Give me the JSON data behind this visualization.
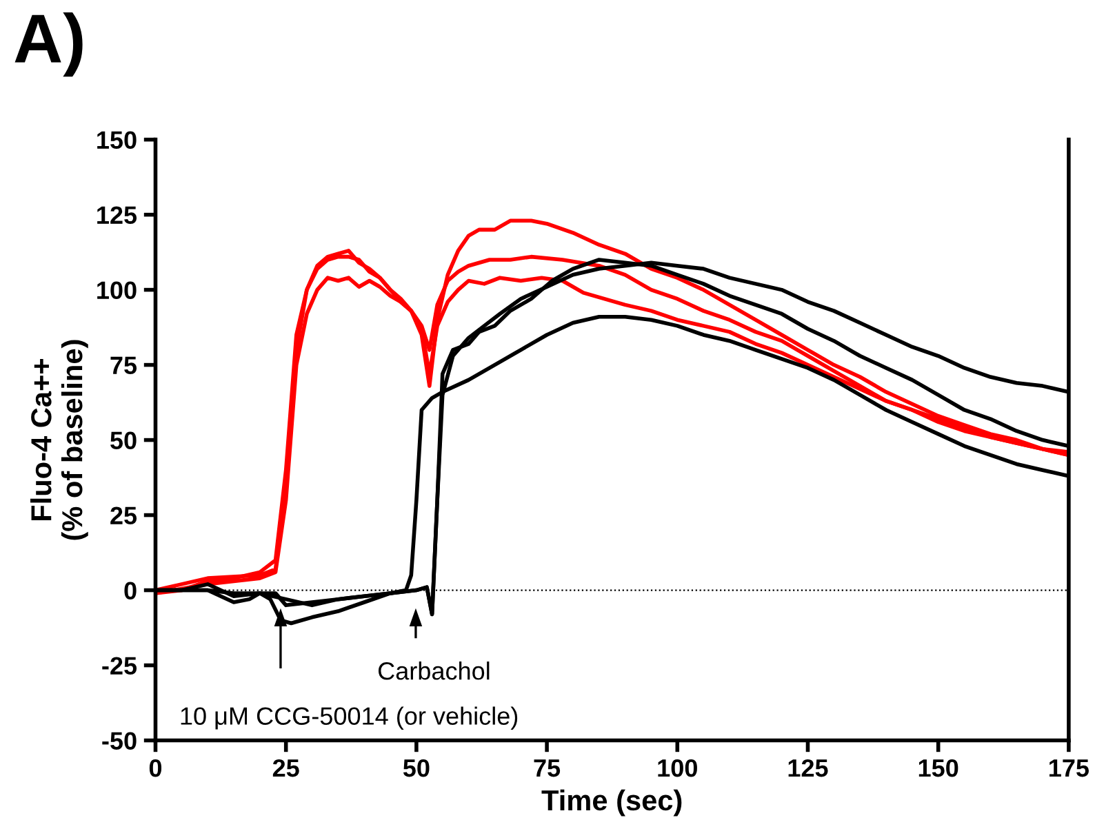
{
  "chart_data": {
    "type": "line",
    "title": "A)",
    "xlabel": "Time (sec)",
    "ylabel": "Fluo-4 Ca++\n(% of baseline)",
    "xlim": [
      0,
      175
    ],
    "xticks": [
      0,
      25,
      50,
      75,
      100,
      125,
      150,
      175
    ],
    "ylim": [
      -50,
      150
    ],
    "yticks": [
      -50,
      -25,
      0,
      25,
      50,
      75,
      100,
      125,
      150
    ],
    "grid": false,
    "legend": false,
    "marker": "none",
    "line_style": "solid",
    "ref_lines": [
      {
        "axis": "y",
        "value": 0,
        "label": null,
        "color": "#000000",
        "line_style": "dotted"
      }
    ],
    "annotations": [
      "10 μM CCG-50014 (or vehicle)",
      "Carbachol"
    ],
    "series": [
      {
        "color": "#ff0000",
        "x": [
          0,
          5,
          10,
          15,
          20,
          23,
          25,
          27,
          29,
          31,
          33,
          35,
          37,
          39,
          41,
          43,
          45,
          47,
          49,
          51,
          52.5,
          54,
          56,
          58,
          60,
          62,
          65,
          68,
          72,
          75,
          80,
          85,
          90,
          95,
          100,
          105,
          110,
          115,
          120,
          125,
          130,
          135,
          140,
          145,
          150,
          155,
          160,
          165,
          170,
          175
        ],
        "values": [
          -1,
          0,
          3,
          4,
          6,
          10,
          40,
          85,
          100,
          108,
          111,
          112,
          113,
          109,
          107,
          104,
          100,
          97,
          93,
          85,
          68,
          90,
          105,
          113,
          118,
          120,
          120,
          123,
          123,
          122,
          119,
          115,
          112,
          107,
          104,
          100,
          95,
          90,
          85,
          80,
          75,
          71,
          66,
          62,
          58,
          55,
          52,
          50,
          47,
          45
        ]
      },
      {
        "color": "#ff0000",
        "x": [
          0,
          10,
          20,
          23,
          25,
          27,
          29,
          31,
          33,
          35,
          37,
          39,
          41,
          43,
          45,
          47,
          49,
          51,
          52.5,
          54,
          56,
          58,
          60,
          64,
          68,
          72,
          78,
          85,
          90,
          95,
          100,
          105,
          110,
          115,
          120,
          125,
          130,
          135,
          140,
          145,
          150,
          155,
          160,
          165,
          170,
          175
        ],
        "values": [
          0,
          4,
          5,
          7,
          35,
          80,
          100,
          107,
          110,
          111,
          111,
          110,
          106,
          104,
          100,
          96,
          93,
          88,
          80,
          95,
          103,
          106,
          108,
          110,
          110,
          111,
          110,
          108,
          105,
          100,
          97,
          93,
          90,
          86,
          83,
          78,
          73,
          68,
          63,
          60,
          56,
          53,
          51,
          49,
          47,
          46
        ]
      },
      {
        "color": "#ff0000",
        "x": [
          0,
          10,
          20,
          23,
          25,
          27,
          29,
          31,
          33,
          35,
          37,
          39,
          41,
          43,
          45,
          47,
          49,
          51,
          52.5,
          54,
          56,
          58,
          60,
          63,
          66,
          70,
          74,
          78,
          82,
          86,
          90,
          95,
          100,
          105,
          110,
          115,
          120,
          125,
          130,
          135,
          140,
          145,
          150,
          155,
          160,
          165,
          170,
          175
        ],
        "values": [
          -1,
          2,
          4,
          6,
          30,
          75,
          92,
          100,
          104,
          103,
          104,
          101,
          103,
          101,
          98,
          96,
          93,
          87,
          72,
          88,
          96,
          100,
          103,
          102,
          104,
          103,
          104,
          103,
          99,
          97,
          95,
          93,
          90,
          88,
          86,
          82,
          79,
          75,
          71,
          67,
          63,
          60,
          57,
          54,
          51,
          49,
          47,
          45
        ]
      },
      {
        "color": "#000000",
        "x": [
          0,
          5,
          10,
          15,
          20,
          22,
          24,
          26,
          30,
          35,
          40,
          45,
          48,
          49,
          50,
          51,
          53,
          55,
          60,
          65,
          70,
          75,
          80,
          85,
          90,
          95,
          100,
          105,
          110,
          115,
          120,
          125,
          130,
          135,
          140,
          145,
          150,
          155,
          160,
          165,
          170,
          175
        ],
        "values": [
          0,
          0,
          2,
          -2,
          -1,
          -3,
          -10,
          -11,
          -9,
          -7,
          -4,
          -1,
          0,
          5,
          30,
          60,
          64,
          66,
          70,
          75,
          80,
          85,
          89,
          91,
          91,
          90,
          88,
          85,
          83,
          80,
          77,
          74,
          70,
          65,
          60,
          56,
          52,
          48,
          45,
          42,
          40,
          38
        ]
      },
      {
        "color": "#000000",
        "x": [
          0,
          10,
          15,
          20,
          23,
          25,
          30,
          35,
          40,
          45,
          50,
          52,
          53,
          54,
          55,
          57,
          60,
          62,
          65,
          68,
          72,
          76,
          80,
          85,
          90,
          95,
          100,
          105,
          110,
          115,
          120,
          125,
          130,
          135,
          140,
          145,
          150,
          155,
          160,
          165,
          170,
          175
        ],
        "values": [
          0,
          0,
          -1,
          -1,
          -1,
          -5,
          -4,
          -3,
          -2,
          -1,
          0,
          1,
          -8,
          30,
          72,
          80,
          82,
          86,
          88,
          93,
          97,
          103,
          107,
          110,
          109,
          108,
          105,
          102,
          98,
          95,
          92,
          87,
          83,
          78,
          74,
          70,
          65,
          60,
          57,
          53,
          50,
          48
        ]
      },
      {
        "color": "#000000",
        "x": [
          0,
          10,
          15,
          18,
          20,
          25,
          30,
          35,
          40,
          45,
          50,
          52,
          53,
          54,
          55,
          57,
          60,
          63,
          66,
          70,
          75,
          80,
          85,
          90,
          95,
          100,
          105,
          110,
          115,
          120,
          125,
          130,
          135,
          140,
          145,
          150,
          155,
          160,
          165,
          170,
          175
        ],
        "values": [
          0,
          0,
          -4,
          -3,
          -1,
          -3,
          -5,
          -3,
          -2,
          -1,
          0,
          1,
          -8,
          30,
          65,
          78,
          84,
          88,
          92,
          97,
          101,
          105,
          107,
          108,
          109,
          108,
          107,
          104,
          102,
          100,
          96,
          93,
          89,
          85,
          81,
          78,
          74,
          71,
          69,
          68,
          66
        ]
      }
    ]
  }
}
